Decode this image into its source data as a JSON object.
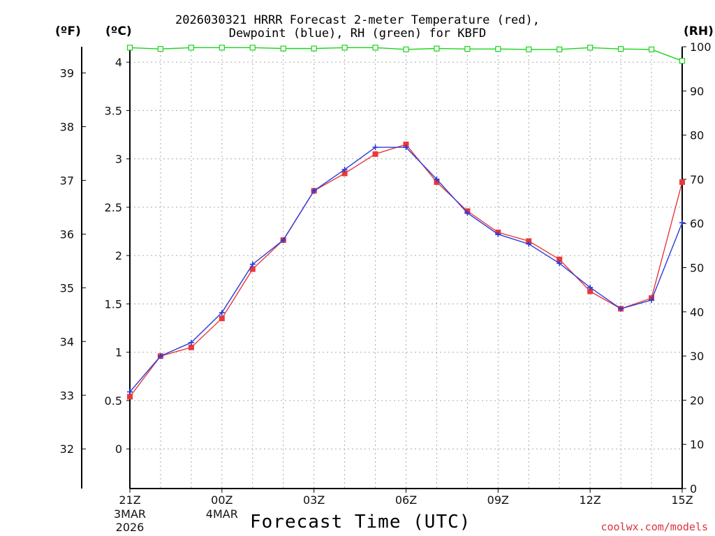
{
  "chart_data": {
    "type": "line",
    "title_line1": "2026030321 HRRR Forecast 2-meter Temperature (red),",
    "title_line2": "Dewpoint (blue), RH (green) for KBFD",
    "xlabel": "Forecast Time (UTC)",
    "credit": "coolwx.com/models",
    "unit_f": "(ºF)",
    "unit_c": "(ºC)",
    "unit_rh": "(RH)",
    "x": [
      0,
      1,
      2,
      3,
      4,
      5,
      6,
      7,
      8,
      9,
      10,
      11,
      12,
      13,
      14,
      15,
      16,
      17,
      18
    ],
    "xlim": [
      0,
      18
    ],
    "x_ticks": [
      {
        "x": 0,
        "label": "21Z",
        "sub1": "3MAR",
        "sub2": "2026"
      },
      {
        "x": 3,
        "label": "00Z",
        "sub1": "4MAR",
        "sub2": ""
      },
      {
        "x": 6,
        "label": "03Z",
        "sub1": "",
        "sub2": ""
      },
      {
        "x": 9,
        "label": "06Z",
        "sub1": "",
        "sub2": ""
      },
      {
        "x": 12,
        "label": "09Z",
        "sub1": "",
        "sub2": ""
      },
      {
        "x": 15,
        "label": "12Z",
        "sub1": "",
        "sub2": ""
      },
      {
        "x": 18,
        "label": "15Z",
        "sub1": "",
        "sub2": ""
      }
    ],
    "grid_x": [
      0,
      1,
      2,
      3,
      4,
      5,
      6,
      7,
      8,
      9,
      10,
      11,
      12,
      13,
      14,
      15,
      16,
      17,
      18
    ],
    "ylim_c": [
      -0.41,
      4.16
    ],
    "yticks_c": [
      "0",
      "0.5",
      "1",
      "1.5",
      "2",
      "2.5",
      "3",
      "3.5",
      "4"
    ],
    "yticks_f": [
      "32",
      "33",
      "34",
      "35",
      "36",
      "37",
      "38",
      "39"
    ],
    "yticks_rh": [
      "0",
      "10",
      "20",
      "30",
      "40",
      "50",
      "60",
      "70",
      "80",
      "90",
      "100"
    ],
    "ylim_rh": [
      0,
      100
    ],
    "series": [
      {
        "name": "Temperature",
        "color": "#e8393b",
        "marker": "square",
        "values": [
          0.54,
          0.96,
          1.05,
          1.35,
          1.86,
          2.16,
          2.67,
          2.85,
          3.05,
          3.15,
          2.76,
          2.46,
          2.24,
          2.15,
          1.96,
          1.63,
          1.45,
          1.56,
          2.76
        ]
      },
      {
        "name": "Dewpoint",
        "color": "#2b3bd8",
        "marker": "plus",
        "values": [
          0.59,
          0.96,
          1.1,
          1.41,
          1.91,
          2.16,
          2.67,
          2.89,
          3.12,
          3.12,
          2.79,
          2.44,
          2.22,
          2.12,
          1.92,
          1.67,
          1.45,
          1.54,
          2.34
        ]
      },
      {
        "name": "RH",
        "color": "#19d419",
        "marker": "hollow-square",
        "axis": "rh",
        "values": [
          99.8,
          99.5,
          99.8,
          99.8,
          99.8,
          99.6,
          99.6,
          99.8,
          99.8,
          99.4,
          99.6,
          99.5,
          99.5,
          99.4,
          99.4,
          99.8,
          99.5,
          99.4,
          96.8
        ]
      }
    ]
  }
}
